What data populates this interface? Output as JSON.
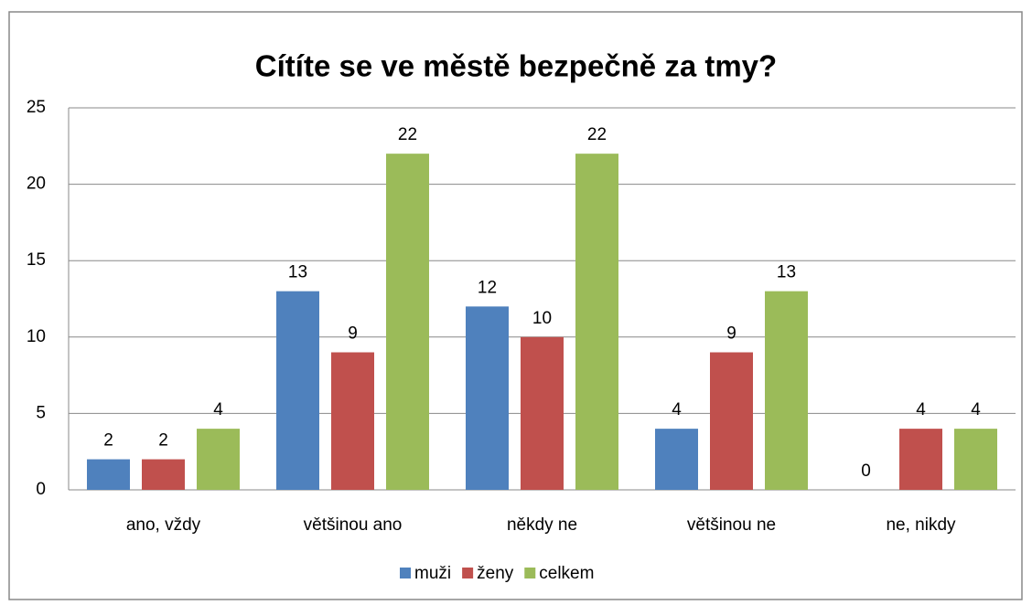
{
  "chart_data": {
    "type": "bar",
    "title": "Cítíte se ve městě bezpečně za tmy?",
    "categories": [
      "ano, vždy",
      "většinou ano",
      "někdy ne",
      "většinou ne",
      "ne, nikdy"
    ],
    "series": [
      {
        "name": "muži",
        "color": "#4f81bd",
        "values": [
          2,
          13,
          12,
          4,
          0
        ]
      },
      {
        "name": "ženy",
        "color": "#c0504d",
        "values": [
          2,
          9,
          10,
          9,
          4
        ]
      },
      {
        "name": "celkem",
        "color": "#9bbb59",
        "values": [
          4,
          22,
          22,
          13,
          4
        ]
      }
    ],
    "ylim": [
      0,
      25
    ],
    "yticks": [
      0,
      5,
      10,
      15,
      20,
      25
    ],
    "grid": true,
    "legend": "bottom"
  }
}
